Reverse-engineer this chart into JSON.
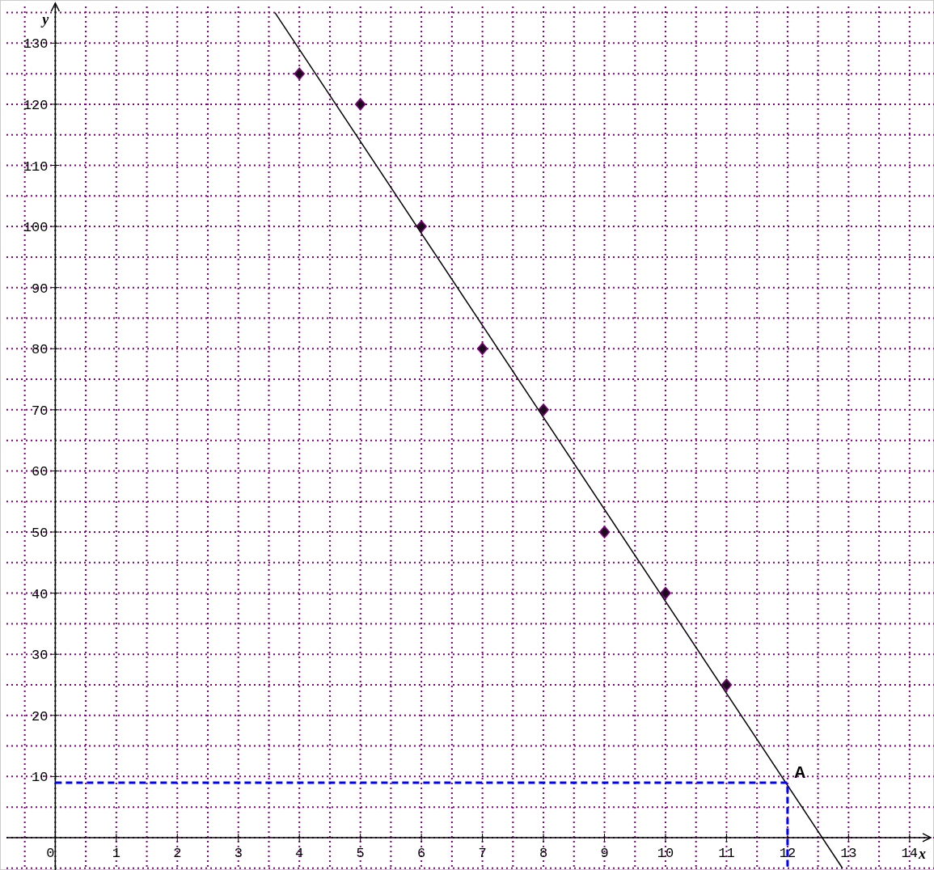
{
  "chart_data": {
    "type": "scatter",
    "xlabel": "x",
    "ylabel": "y",
    "xlim": [
      -0.8,
      14.4
    ],
    "ylim": [
      -5.3,
      136
    ],
    "xticks": [
      0,
      1,
      2,
      3,
      4,
      5,
      6,
      7,
      8,
      9,
      10,
      11,
      12,
      13,
      14
    ],
    "yticks": [
      10,
      20,
      30,
      40,
      50,
      60,
      70,
      80,
      90,
      100,
      110,
      120,
      130
    ],
    "grid": true,
    "marker": "diamond",
    "series": [
      {
        "color": "#1a0a1a",
        "x": [
          4,
          5,
          6,
          7,
          8,
          9,
          10,
          11
        ],
        "values": [
          125,
          120,
          100,
          80,
          70,
          50,
          40,
          25
        ]
      },
      {
        "type": "line",
        "color": "#000000",
        "marker": "none",
        "x": [
          3.6,
          12.9
        ],
        "values": [
          135,
          -5
        ]
      },
      {
        "type": "line",
        "color": "#0000ff",
        "marker": "none",
        "line_style": "dashed",
        "x": [
          0,
          12,
          12
        ],
        "values": [
          9,
          9,
          -5.3
        ]
      }
    ],
    "annotations": [
      {
        "text": "A",
        "x": 12,
        "y": 9
      }
    ]
  }
}
